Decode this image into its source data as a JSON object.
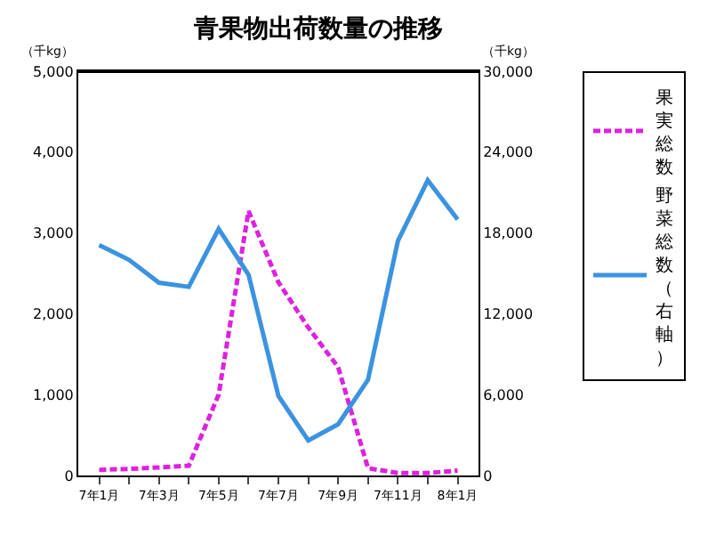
{
  "chart_data": {
    "type": "line",
    "title": "青果物出荷数量の推移",
    "ylabel": "（千kg）",
    "y2label": "（千kg）",
    "categories": [
      "7年1月",
      null,
      "7年3月",
      null,
      "7年5月",
      null,
      "7年7月",
      null,
      "7年9月",
      null,
      "7年11月",
      null,
      "8年1月"
    ],
    "series": [
      {
        "name": "果実総数",
        "color": "#dd22dd",
        "line_style": "dashed",
        "values": [
          70,
          80,
          100,
          120,
          1000,
          3270,
          2390,
          1830,
          1340,
          90,
          30,
          30,
          60
        ]
      },
      {
        "name": "野菜総数（右軸）",
        "color": "#3b93e0",
        "line_style": "solid",
        "axis": "y2",
        "values": [
          17100,
          16000,
          14300,
          14000,
          18300,
          14900,
          5900,
          2600,
          3800,
          7100,
          17400,
          21900,
          19000
        ]
      }
    ],
    "ylim": [
      0,
      5000
    ],
    "yticks": [
      {
        "value": 0,
        "label": "0"
      },
      {
        "value": 1000,
        "label": "1,000"
      },
      {
        "value": 2000,
        "label": "2,000"
      },
      {
        "value": 3000,
        "label": "3,000"
      },
      {
        "value": 4000,
        "label": "4,000"
      },
      {
        "value": 5000,
        "label": "5,000"
      }
    ],
    "y2lim": [
      0,
      30000
    ],
    "y2ticks": [
      {
        "value": 0,
        "label": "0"
      },
      {
        "value": 6000,
        "label": "6,000"
      },
      {
        "value": 12000,
        "label": "12,000"
      },
      {
        "value": 18000,
        "label": "18,000"
      },
      {
        "value": 24000,
        "label": "24,000"
      },
      {
        "value": 30000,
        "label": "30,000"
      }
    ],
    "legend": "right",
    "marker": "none"
  }
}
